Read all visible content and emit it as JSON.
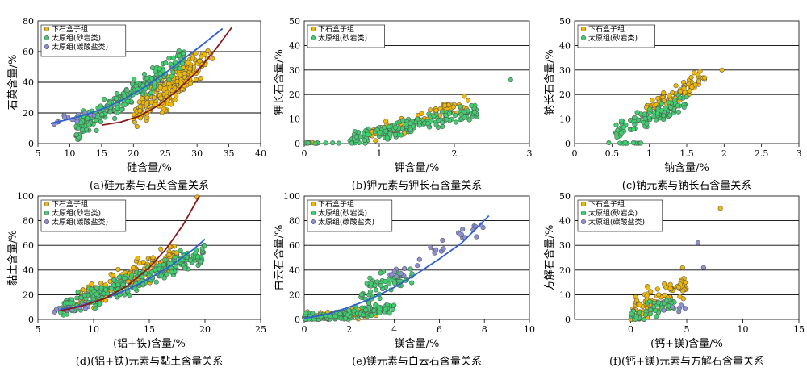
{
  "colors": {
    "xiashihezi": "#f2b800",
    "taiyuan_sandstone": "#3ecf6e",
    "taiyuan_carbonate": "#8a8fd8",
    "fit_blue": "#2f5fd6",
    "fit_red": "#8b1a1a",
    "grid": "#000000"
  },
  "legend_labels": {
    "xiashihezi": "下石盒子组",
    "taiyuan_sandstone": "太原组(砂岩类)",
    "taiyuan_carbonate": "太原组(碳酸盐类)"
  },
  "chart_data": [
    {
      "id": "a",
      "type": "scatter",
      "caption": "(a)硅元素与石英含量关系",
      "xlabel": "硅含量/%",
      "ylabel": "石英含量/%",
      "xlim": [
        5,
        40
      ],
      "ylim": [
        0,
        80
      ],
      "xticks": [
        5,
        10,
        15,
        20,
        25,
        30,
        35,
        40
      ],
      "yticks": [
        0,
        20,
        40,
        60,
        80
      ],
      "grid_y": true,
      "legend": "top-left",
      "series": [
        {
          "name": "下石盒子组",
          "key": "xiashihezi",
          "clouds": [
            {
              "xmin": 20,
              "xmax": 30,
              "slope": 3.6,
              "icpt": -54,
              "spread": 7,
              "n": 150
            },
            {
              "xmin": 24,
              "xmax": 33,
              "slope": 4.4,
              "icpt": -83,
              "spread": 6,
              "n": 60
            }
          ]
        },
        {
          "name": "太原组(砂岩类)",
          "key": "taiyuan_sandstone",
          "clouds": [
            {
              "xmin": 11,
              "xmax": 28,
              "slope": 2.8,
              "icpt": -22,
              "spread": 7,
              "n": 230
            }
          ]
        },
        {
          "name": "太原组(碳酸盐类)",
          "key": "taiyuan_carbonate",
          "clouds": [
            {
              "xmin": 7,
              "xmax": 14,
              "slope": 0.7,
              "icpt": 9,
              "spread": 3,
              "n": 14
            }
          ]
        }
      ],
      "fits": [
        {
          "color": "fit_blue",
          "x": [
            7,
            10,
            13,
            16,
            19,
            22,
            25,
            28,
            31,
            34
          ],
          "y": [
            13,
            16,
            19.5,
            24,
            30,
            37.5,
            46,
            55.5,
            65,
            75
          ]
        },
        {
          "color": "fit_red",
          "x": [
            15,
            18,
            21,
            24,
            27,
            30,
            33,
            35.5
          ],
          "y": [
            12,
            14,
            18,
            25,
            35,
            47,
            62,
            76
          ]
        }
      ]
    },
    {
      "id": "b",
      "type": "scatter",
      "caption": "(b)钾元素与钾长石含量关系",
      "xlabel": "钾含量/%",
      "ylabel": "钾长石含量/%",
      "xlim": [
        0,
        3
      ],
      "ylim": [
        0,
        50
      ],
      "xticks": [
        0,
        1,
        2,
        3
      ],
      "yticks": [
        0,
        10,
        20,
        30,
        40,
        50
      ],
      "grid_y": true,
      "legend": "top-left",
      "series": [
        {
          "name": "下石盒子组",
          "key": "xiashihezi",
          "clouds": [
            {
              "xmin": 0.8,
              "xmax": 2.2,
              "slope": 9,
              "icpt": -4,
              "spread": 3,
              "n": 80
            },
            {
              "xmin": 0.0,
              "xmax": 0.3,
              "slope": 0,
              "icpt": 0,
              "spread": 0.3,
              "n": 6
            }
          ]
        },
        {
          "name": "太原组(砂岩类)",
          "key": "taiyuan_sandstone",
          "clouds": [
            {
              "xmin": 0.6,
              "xmax": 2.3,
              "slope": 7,
              "icpt": -3,
              "spread": 3,
              "n": 170
            },
            {
              "xmin": 0.0,
              "xmax": 0.5,
              "slope": 0,
              "icpt": 0,
              "spread": 0.3,
              "n": 10
            }
          ]
        }
      ],
      "extra_points": [
        {
          "key": "taiyuan_sandstone",
          "x": 2.75,
          "y": 26
        }
      ],
      "fits": []
    },
    {
      "id": "c",
      "type": "scatter",
      "caption": "(c)钠元素与钠长石含量关系",
      "xlabel": "钠含量/%",
      "ylabel": "钠长石含量/%",
      "xlim": [
        0,
        3
      ],
      "ylim": [
        0,
        50
      ],
      "xticks": [
        0,
        0.5,
        1,
        1.5,
        2,
        2.5,
        3
      ],
      "yticks": [
        0,
        10,
        20,
        30,
        40,
        50
      ],
      "grid_y": true,
      "legend": "top-left",
      "series": [
        {
          "name": "下石盒子组",
          "key": "xiashihezi",
          "clouds": [
            {
              "xmin": 0.9,
              "xmax": 1.75,
              "slope": 17,
              "icpt": -3,
              "spread": 3.5,
              "n": 90
            }
          ]
        },
        {
          "name": "太原组(砂岩类)",
          "key": "taiyuan_sandstone",
          "clouds": [
            {
              "xmin": 0.55,
              "xmax": 1.5,
              "slope": 12,
              "icpt": -1,
              "spread": 3,
              "n": 100
            },
            {
              "xmin": 0.4,
              "xmax": 0.9,
              "slope": 0,
              "icpt": 0.2,
              "spread": 0.3,
              "n": 10
            }
          ]
        }
      ],
      "extra_points": [
        {
          "key": "xiashihezi",
          "x": 1.97,
          "y": 30
        }
      ],
      "fits": []
    },
    {
      "id": "d",
      "type": "scatter",
      "caption": "(d)(铝+铁)元素与黏土含量关系",
      "xlabel": "(铝+铁)含量/%",
      "ylabel": "黏土含量/%",
      "xlim": [
        5,
        25
      ],
      "ylim": [
        0,
        100
      ],
      "xticks": [
        5,
        10,
        15,
        20,
        25
      ],
      "yticks": [
        0,
        20,
        40,
        60,
        80,
        100
      ],
      "grid_y": true,
      "legend": "top-left",
      "series": [
        {
          "name": "下石盒子组",
          "key": "xiashihezi",
          "clouds": [
            {
              "xmin": 8.5,
              "xmax": 17.5,
              "slope": 4.2,
              "icpt": -22,
              "spread": 9,
              "n": 150
            }
          ]
        },
        {
          "name": "太原组(砂岩类)",
          "key": "taiyuan_sandstone",
          "clouds": [
            {
              "xmin": 7,
              "xmax": 20,
              "slope": 3.5,
              "icpt": -17,
              "spread": 7,
              "n": 260
            }
          ]
        },
        {
          "name": "太原组(碳酸盐类)",
          "key": "taiyuan_carbonate",
          "clouds": [
            {
              "xmin": 6.5,
              "xmax": 9.5,
              "slope": 1,
              "icpt": 1,
              "spread": 2.5,
              "n": 12
            }
          ]
        }
      ],
      "extra_points": [
        {
          "key": "xiashihezi",
          "x": 19.3,
          "y": 99
        }
      ],
      "fits": [
        {
          "color": "fit_blue",
          "x": [
            7,
            9,
            11,
            13,
            15,
            17,
            19,
            20
          ],
          "y": [
            8,
            11.5,
            17,
            24,
            33,
            44,
            57,
            65
          ]
        },
        {
          "color": "fit_red",
          "x": [
            7,
            9,
            11,
            13,
            15,
            16.5,
            18,
            19.5
          ],
          "y": [
            7,
            11,
            17,
            27,
            42,
            57,
            76,
            100
          ]
        }
      ]
    },
    {
      "id": "e",
      "type": "scatter",
      "caption": "(e)镁元素与白云石含量关系",
      "xlabel": "镁含量/%",
      "ylabel": "白云石含量/%",
      "xlim": [
        0,
        10
      ],
      "ylim": [
        0,
        100
      ],
      "xticks": [
        0,
        2,
        4,
        6,
        8,
        10
      ],
      "yticks": [
        0,
        20,
        40,
        60,
        80,
        100
      ],
      "grid_y": true,
      "legend": "top-left",
      "series": [
        {
          "name": "下石盒子组",
          "key": "xiashihezi",
          "clouds": [
            {
              "xmin": 0,
              "xmax": 3.2,
              "slope": 1,
              "icpt": 2,
              "spread": 3,
              "n": 70
            }
          ]
        },
        {
          "name": "太原组(砂岩类)",
          "key": "taiyuan_sandstone",
          "clouds": [
            {
              "xmin": 0,
              "xmax": 4,
              "slope": 2.5,
              "icpt": 0,
              "spread": 4,
              "n": 190
            },
            {
              "xmin": 2.5,
              "xmax": 4.8,
              "slope": 6,
              "icpt": 7,
              "spread": 9,
              "n": 60
            }
          ]
        },
        {
          "name": "太原组(碳酸盐类)",
          "key": "taiyuan_carbonate",
          "clouds": [
            {
              "xmin": 3.8,
              "xmax": 8.2,
              "slope": 10,
              "icpt": -3,
              "spread": 6,
              "n": 30
            }
          ]
        }
      ],
      "fits": [
        {
          "color": "fit_blue",
          "x": [
            0,
            1,
            2,
            3,
            4,
            5,
            6,
            7,
            8.2
          ],
          "y": [
            1,
            4,
            10,
            17,
            26,
            37,
            49,
            62,
            84
          ]
        }
      ]
    },
    {
      "id": "f",
      "type": "scatter",
      "caption": "(f)(钙+镁)元素与方解石含量关系",
      "xlabel": "(钙+镁)含量/%",
      "ylabel": "方解石含量/%",
      "xlim": [
        -5,
        15
      ],
      "ylim": [
        0,
        50
      ],
      "xticks": [
        0,
        5,
        10,
        15
      ],
      "yticks": [
        0,
        10,
        20,
        30,
        40,
        50
      ],
      "grid_y": true,
      "legend": "top-left",
      "series": [
        {
          "name": "下石盒子组",
          "key": "xiashihezi",
          "clouds": [
            {
              "xmin": 0,
              "xmax": 5,
              "slope": 2.5,
              "icpt": 2,
              "spread": 5,
              "n": 100
            }
          ]
        },
        {
          "name": "太原组(砂岩类)",
          "key": "taiyuan_sandstone",
          "clouds": [
            {
              "xmin": 0,
              "xmax": 4,
              "slope": 1.5,
              "icpt": 1,
              "spread": 3,
              "n": 50
            }
          ]
        },
        {
          "name": "太原组(碳酸盐类)",
          "key": "taiyuan_carbonate",
          "clouds": [
            {
              "xmin": 2.5,
              "xmax": 5,
              "slope": 1,
              "icpt": 0,
              "spread": 2,
              "n": 6
            }
          ]
        }
      ],
      "extra_points": [
        {
          "key": "xiashihezi",
          "x": 8,
          "y": 45
        },
        {
          "key": "taiyuan_carbonate",
          "x": 6,
          "y": 31
        },
        {
          "key": "taiyuan_carbonate",
          "x": 6.5,
          "y": 21
        }
      ],
      "fits": []
    }
  ]
}
